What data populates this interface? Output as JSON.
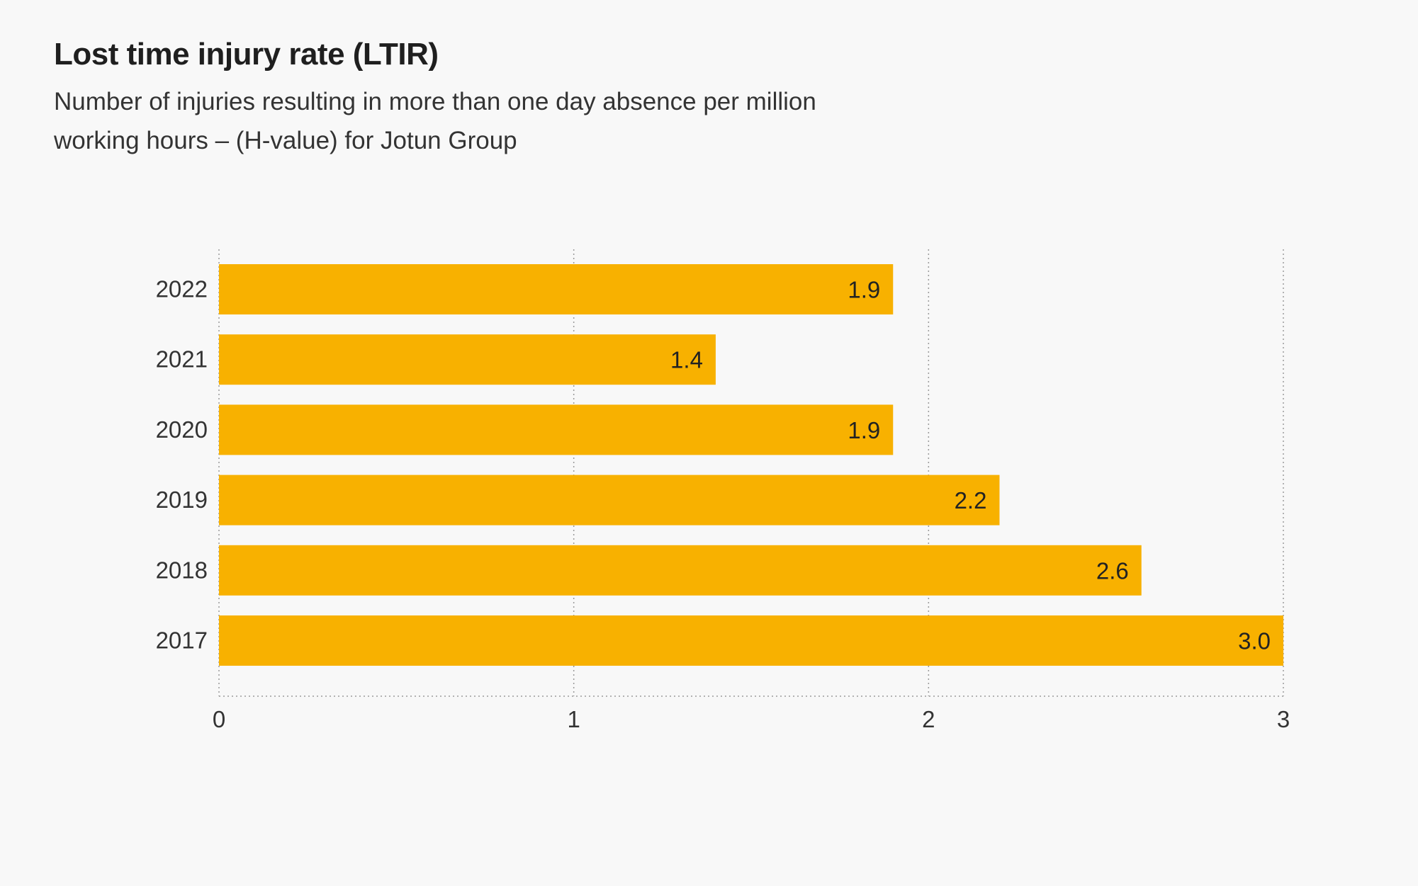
{
  "chart_data": {
    "type": "bar",
    "orientation": "horizontal",
    "title": "Lost time injury rate (LTIR)",
    "subtitle": "Number of injuries resulting in more than one day absence per million working hours – (H-value) for Jotun Group",
    "categories": [
      "2022",
      "2021",
      "2020",
      "2019",
      "2018",
      "2017"
    ],
    "values": [
      1.9,
      1.4,
      1.9,
      2.2,
      2.6,
      3.0
    ],
    "value_labels": [
      "1.9",
      "1.4",
      "1.9",
      "2.2",
      "2.6",
      "3.0"
    ],
    "xlim": [
      0,
      3
    ],
    "x_ticks": [
      "0",
      "1",
      "2",
      "3"
    ],
    "xlabel": "",
    "ylabel": "",
    "grid": true,
    "legend": "none",
    "bar_color": "#f8b100"
  }
}
